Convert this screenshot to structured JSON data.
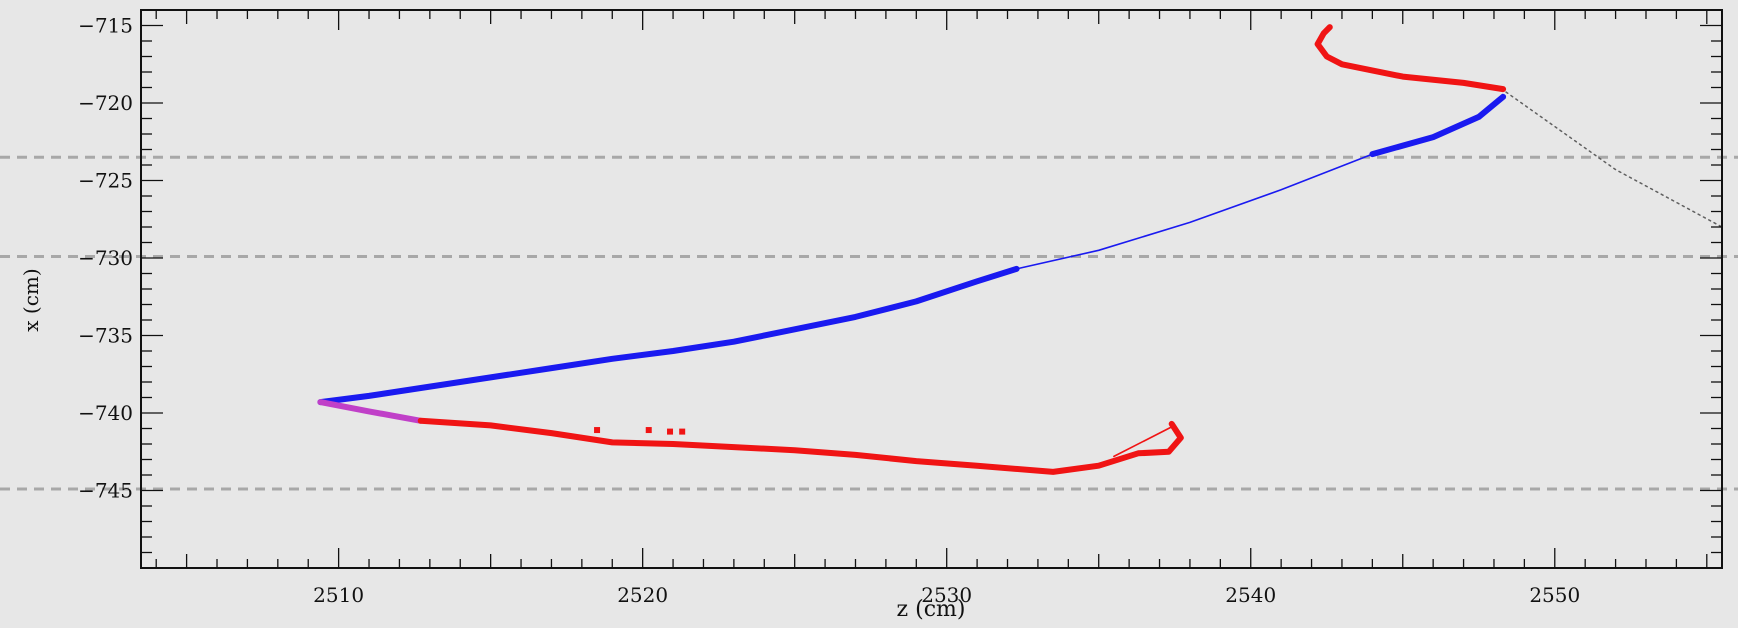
{
  "chart_data": {
    "type": "scatter",
    "title": "",
    "xlabel": "z (cm)",
    "ylabel": "x (cm)",
    "xlim": [
      2503.5,
      2555.5
    ],
    "ylim": [
      -750,
      -714
    ],
    "x_ticks": [
      2510,
      2520,
      2530,
      2540,
      2550
    ],
    "x_tick_labels": [
      "2510",
      "2520",
      "2530",
      "2540",
      "2550"
    ],
    "y_ticks": [
      -715,
      -720,
      -725,
      -730,
      -735,
      -740,
      -745
    ],
    "y_tick_labels": [
      "−715",
      "−720",
      "−725",
      "−730",
      "−735",
      "−740",
      "−745"
    ],
    "grid": "off",
    "colors": {
      "background": "#e7e7e7",
      "frame": "#111111",
      "blue_track": "#1a1af0",
      "red_track": "#f01414",
      "magenta_track": "#c040c8",
      "dashed_lines": "#a8a8a8",
      "dotted_line": "#606060"
    },
    "horizontal_dashed_lines_y": [
      -723.5,
      -729.9,
      -744.9
    ],
    "series": [
      {
        "color_key": "blue_track",
        "style": "thick",
        "points": [
          [
            2509.4,
            -739.3
          ],
          [
            2511,
            -738.9
          ],
          [
            2513,
            -738.3
          ],
          [
            2515,
            -737.7
          ],
          [
            2517,
            -737.1
          ],
          [
            2519,
            -736.5
          ],
          [
            2521,
            -736
          ],
          [
            2523,
            -735.4
          ],
          [
            2525,
            -734.6
          ],
          [
            2527,
            -733.8
          ],
          [
            2529,
            -732.8
          ],
          [
            2531,
            -731.5
          ],
          [
            2532.3,
            -730.7
          ]
        ]
      },
      {
        "color_key": "blue_track",
        "style": "thin",
        "points": [
          [
            2532.3,
            -730.7
          ],
          [
            2535,
            -729.5
          ],
          [
            2538,
            -727.7
          ],
          [
            2541,
            -725.6
          ],
          [
            2544,
            -723.3
          ]
        ]
      },
      {
        "color_key": "blue_track",
        "style": "thick",
        "points": [
          [
            2544,
            -723.3
          ],
          [
            2546,
            -722.2
          ],
          [
            2547.5,
            -720.9
          ],
          [
            2548.3,
            -719.6
          ]
        ]
      },
      {
        "color_key": "magenta_track",
        "style": "thick",
        "points": [
          [
            2509.4,
            -739.3
          ],
          [
            2511,
            -739.9
          ],
          [
            2512.7,
            -740.5
          ]
        ]
      },
      {
        "color_key": "red_track",
        "style": "thick",
        "points": [
          [
            2512.7,
            -740.5
          ],
          [
            2515,
            -740.8
          ],
          [
            2517,
            -741.3
          ],
          [
            2519,
            -741.9
          ],
          [
            2521,
            -742
          ],
          [
            2523,
            -742.2
          ],
          [
            2525,
            -742.4
          ],
          [
            2527,
            -742.7
          ],
          [
            2529,
            -743.1
          ],
          [
            2531,
            -743.4
          ],
          [
            2533.5,
            -743.8
          ],
          [
            2535,
            -743.4
          ],
          [
            2536.3,
            -742.6
          ],
          [
            2537.3,
            -742.5
          ],
          [
            2537.7,
            -741.6
          ],
          [
            2537.4,
            -740.7
          ]
        ]
      },
      {
        "color_key": "red_track",
        "style": "thin",
        "points": [
          [
            2535.5,
            -742.8
          ],
          [
            2537.4,
            -740.9
          ]
        ]
      },
      {
        "color_key": "red_track",
        "style": "thick",
        "points": [
          [
            2548.3,
            -719.1
          ],
          [
            2547,
            -718.7
          ],
          [
            2545,
            -718.3
          ],
          [
            2543,
            -717.5
          ],
          [
            2542.5,
            -717
          ],
          [
            2542.2,
            -716.2
          ],
          [
            2542.4,
            -715.5
          ],
          [
            2542.6,
            -715.1
          ]
        ]
      },
      {
        "color_key": "dotted_line",
        "style": "dotted",
        "points": [
          [
            2548.4,
            -719.3
          ],
          [
            2552,
            -724.3
          ],
          [
            2555.5,
            -728
          ]
        ]
      }
    ],
    "scatter_points": [
      {
        "color_key": "red_track",
        "points": [
          [
            2518.5,
            -741.1
          ],
          [
            2520.2,
            -741.1
          ],
          [
            2520.9,
            -741.2
          ],
          [
            2521.3,
            -741.2
          ]
        ]
      }
    ]
  }
}
